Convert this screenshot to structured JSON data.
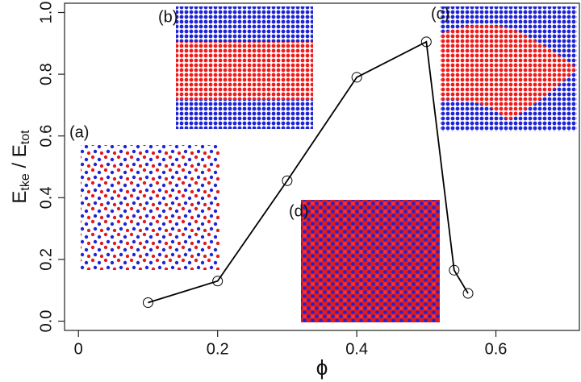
{
  "chart_data": {
    "type": "line",
    "xlabel": "ϕ",
    "ylabel": [
      "E",
      "tke",
      " / E",
      "tot"
    ],
    "x": [
      0.1,
      0.2,
      0.3,
      0.4,
      0.5,
      0.54,
      0.56
    ],
    "series": [
      {
        "color": "#000000",
        "values": [
          0.06,
          0.13,
          0.455,
          0.79,
          0.905,
          0.165,
          0.09
        ]
      }
    ],
    "xlim": [
      -0.02,
      0.72
    ],
    "ylim": [
      -0.03,
      1.03
    ],
    "xticks": [
      0,
      0.2,
      0.4,
      0.6
    ],
    "yticks": [
      {
        "value": 0,
        "label": "0.0"
      },
      0.2,
      0.4,
      0.6,
      0.8,
      {
        "value": 1,
        "label": "1.0"
      }
    ],
    "annotations": [
      "(a)",
      "(b)",
      "(c)",
      "(d)"
    ]
  }
}
